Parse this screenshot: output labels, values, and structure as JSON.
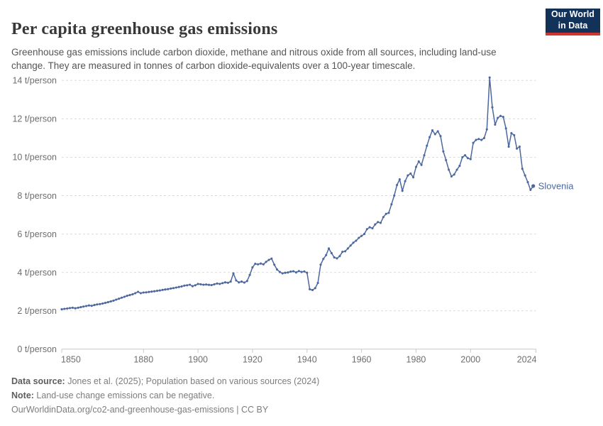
{
  "header": {
    "title": "Per capita greenhouse gas emissions",
    "subtitle": "Greenhouse gas emissions include carbon dioxide, methane and nitrous oxide from all sources, including land-use change. They are measured in tonnes of carbon dioxide-equivalents over a 100-year timescale.",
    "logo": {
      "line1": "Our World",
      "line2": "in Data"
    }
  },
  "chart_data": {
    "type": "line",
    "title": "Per capita greenhouse gas emissions",
    "xlabel": "",
    "ylabel": "",
    "unit": "t/person",
    "xlim": [
      1850,
      2024
    ],
    "ylim": [
      0,
      14
    ],
    "grid": "horizontal-dashed",
    "legend_position": "end-of-line-label",
    "xticks": [
      1850,
      1880,
      1900,
      1920,
      1940,
      1960,
      1980,
      2000,
      2024
    ],
    "yticks": [
      0,
      2,
      4,
      6,
      8,
      10,
      12,
      14
    ],
    "ytick_labels": [
      "0 t/person",
      "2 t/person",
      "4 t/person",
      "6 t/person",
      "8 t/person",
      "10 t/person",
      "12 t/person",
      "14 t/person"
    ],
    "series": [
      {
        "name": "Slovenia",
        "end_label": "Slovenia",
        "points": [
          [
            1850,
            2.08
          ],
          [
            1851,
            2.1
          ],
          [
            1852,
            2.12
          ],
          [
            1853,
            2.14
          ],
          [
            1854,
            2.16
          ],
          [
            1855,
            2.13
          ],
          [
            1856,
            2.16
          ],
          [
            1857,
            2.19
          ],
          [
            1858,
            2.22
          ],
          [
            1859,
            2.25
          ],
          [
            1860,
            2.28
          ],
          [
            1861,
            2.26
          ],
          [
            1862,
            2.3
          ],
          [
            1863,
            2.33
          ],
          [
            1864,
            2.35
          ],
          [
            1865,
            2.38
          ],
          [
            1866,
            2.41
          ],
          [
            1867,
            2.45
          ],
          [
            1868,
            2.49
          ],
          [
            1869,
            2.53
          ],
          [
            1870,
            2.58
          ],
          [
            1871,
            2.63
          ],
          [
            1872,
            2.68
          ],
          [
            1873,
            2.73
          ],
          [
            1874,
            2.78
          ],
          [
            1875,
            2.82
          ],
          [
            1876,
            2.86
          ],
          [
            1877,
            2.92
          ],
          [
            1878,
            2.99
          ],
          [
            1879,
            2.92
          ],
          [
            1880,
            2.95
          ],
          [
            1881,
            2.96
          ],
          [
            1882,
            2.98
          ],
          [
            1883,
            3.0
          ],
          [
            1884,
            3.02
          ],
          [
            1885,
            3.04
          ],
          [
            1886,
            3.06
          ],
          [
            1887,
            3.09
          ],
          [
            1888,
            3.11
          ],
          [
            1889,
            3.13
          ],
          [
            1890,
            3.16
          ],
          [
            1891,
            3.18
          ],
          [
            1892,
            3.21
          ],
          [
            1893,
            3.24
          ],
          [
            1894,
            3.27
          ],
          [
            1895,
            3.31
          ],
          [
            1896,
            3.33
          ],
          [
            1897,
            3.36
          ],
          [
            1898,
            3.28
          ],
          [
            1899,
            3.33
          ],
          [
            1900,
            3.4
          ],
          [
            1901,
            3.38
          ],
          [
            1902,
            3.36
          ],
          [
            1903,
            3.37
          ],
          [
            1904,
            3.35
          ],
          [
            1905,
            3.34
          ],
          [
            1906,
            3.38
          ],
          [
            1907,
            3.42
          ],
          [
            1908,
            3.4
          ],
          [
            1909,
            3.44
          ],
          [
            1910,
            3.48
          ],
          [
            1911,
            3.46
          ],
          [
            1912,
            3.52
          ],
          [
            1913,
            3.95
          ],
          [
            1914,
            3.58
          ],
          [
            1915,
            3.48
          ],
          [
            1916,
            3.52
          ],
          [
            1917,
            3.47
          ],
          [
            1918,
            3.55
          ],
          [
            1919,
            3.87
          ],
          [
            1920,
            4.26
          ],
          [
            1921,
            4.45
          ],
          [
            1922,
            4.42
          ],
          [
            1923,
            4.46
          ],
          [
            1924,
            4.42
          ],
          [
            1925,
            4.55
          ],
          [
            1926,
            4.65
          ],
          [
            1927,
            4.72
          ],
          [
            1928,
            4.4
          ],
          [
            1929,
            4.15
          ],
          [
            1930,
            4.02
          ],
          [
            1931,
            3.95
          ],
          [
            1932,
            3.98
          ],
          [
            1933,
            4.0
          ],
          [
            1934,
            4.04
          ],
          [
            1935,
            4.06
          ],
          [
            1936,
            4.0
          ],
          [
            1937,
            4.07
          ],
          [
            1938,
            4.02
          ],
          [
            1939,
            4.05
          ],
          [
            1940,
            3.98
          ],
          [
            1941,
            3.12
          ],
          [
            1942,
            3.08
          ],
          [
            1943,
            3.18
          ],
          [
            1944,
            3.45
          ],
          [
            1945,
            4.4
          ],
          [
            1946,
            4.7
          ],
          [
            1947,
            4.9
          ],
          [
            1948,
            5.25
          ],
          [
            1949,
            5.0
          ],
          [
            1950,
            4.78
          ],
          [
            1951,
            4.73
          ],
          [
            1952,
            4.85
          ],
          [
            1953,
            5.07
          ],
          [
            1954,
            5.1
          ],
          [
            1955,
            5.25
          ],
          [
            1956,
            5.4
          ],
          [
            1957,
            5.55
          ],
          [
            1958,
            5.65
          ],
          [
            1959,
            5.8
          ],
          [
            1960,
            5.9
          ],
          [
            1961,
            6.0
          ],
          [
            1962,
            6.25
          ],
          [
            1963,
            6.35
          ],
          [
            1964,
            6.3
          ],
          [
            1965,
            6.5
          ],
          [
            1966,
            6.62
          ],
          [
            1967,
            6.58
          ],
          [
            1968,
            6.88
          ],
          [
            1969,
            7.05
          ],
          [
            1970,
            7.1
          ],
          [
            1971,
            7.55
          ],
          [
            1972,
            8.0
          ],
          [
            1973,
            8.55
          ],
          [
            1974,
            8.85
          ],
          [
            1975,
            8.25
          ],
          [
            1976,
            8.75
          ],
          [
            1977,
            9.05
          ],
          [
            1978,
            9.15
          ],
          [
            1979,
            8.95
          ],
          [
            1980,
            9.5
          ],
          [
            1981,
            9.78
          ],
          [
            1982,
            9.6
          ],
          [
            1983,
            10.1
          ],
          [
            1984,
            10.6
          ],
          [
            1985,
            11.05
          ],
          [
            1986,
            11.4
          ],
          [
            1987,
            11.2
          ],
          [
            1988,
            11.35
          ],
          [
            1989,
            11.1
          ],
          [
            1990,
            10.3
          ],
          [
            1991,
            9.85
          ],
          [
            1992,
            9.35
          ],
          [
            1993,
            9.0
          ],
          [
            1994,
            9.1
          ],
          [
            1995,
            9.35
          ],
          [
            1996,
            9.55
          ],
          [
            1997,
            10.0
          ],
          [
            1998,
            10.1
          ],
          [
            1999,
            9.95
          ],
          [
            2000,
            9.9
          ],
          [
            2001,
            10.75
          ],
          [
            2002,
            10.9
          ],
          [
            2003,
            10.95
          ],
          [
            2004,
            10.9
          ],
          [
            2005,
            11.0
          ],
          [
            2006,
            11.45
          ],
          [
            2007,
            14.15
          ],
          [
            2008,
            12.6
          ],
          [
            2009,
            11.7
          ],
          [
            2010,
            12.05
          ],
          [
            2011,
            12.15
          ],
          [
            2012,
            12.1
          ],
          [
            2013,
            11.5
          ],
          [
            2014,
            10.55
          ],
          [
            2015,
            11.25
          ],
          [
            2016,
            11.15
          ],
          [
            2017,
            10.45
          ],
          [
            2018,
            10.55
          ],
          [
            2019,
            9.4
          ],
          [
            2020,
            9.05
          ],
          [
            2021,
            8.7
          ],
          [
            2022,
            8.3
          ],
          [
            2023,
            8.5
          ]
        ]
      }
    ]
  },
  "footer": {
    "data_source_label": "Data source:",
    "data_source_text": " Jones et al. (2025); Population based on various sources (2024)",
    "note_label": "Note:",
    "note_text": " Land-use change emissions can be negative.",
    "link_text": "OurWorldinData.org/co2-and-greenhouse-gas-emissions",
    "separator": " | ",
    "license_text": "CC BY"
  },
  "colors": {
    "line": "#4c689f",
    "grid": "#dcdcdc",
    "axis": "#c8c8c8",
    "tick_label": "#6e6e6e",
    "title": "#383838",
    "subtitle": "#555555",
    "logo_bg": "#12325a",
    "logo_stripe": "#d1342e"
  }
}
